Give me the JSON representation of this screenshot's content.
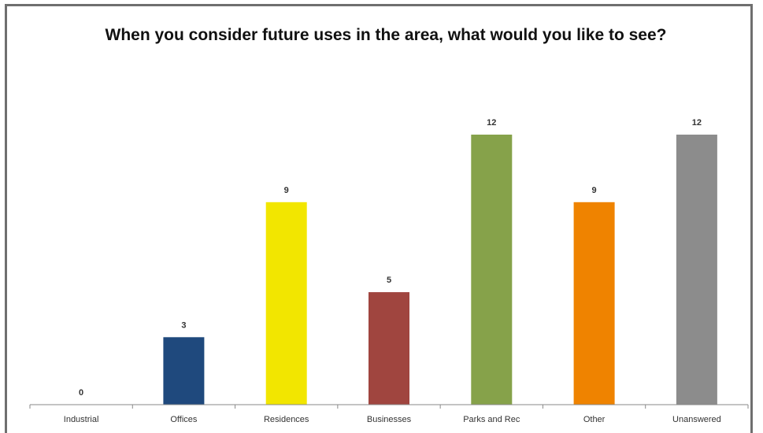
{
  "chart_data": {
    "type": "bar",
    "title": "When you consider future uses in the area, what would you like to see?",
    "categories": [
      "Industrial",
      "Offices",
      "Residences",
      "Businesses",
      "Parks and Rec",
      "Other",
      "Unanswered"
    ],
    "values": [
      0,
      3,
      9,
      5,
      12,
      9,
      12
    ],
    "colors": [
      "#1f497d",
      "#1f497d",
      "#f2e600",
      "#a0453f",
      "#86a24a",
      "#ef8300",
      "#8c8c8c"
    ],
    "data_labels": true,
    "xlabel": "",
    "ylabel": "",
    "ylim": [
      0,
      12
    ],
    "grid": false,
    "legend": "none"
  }
}
